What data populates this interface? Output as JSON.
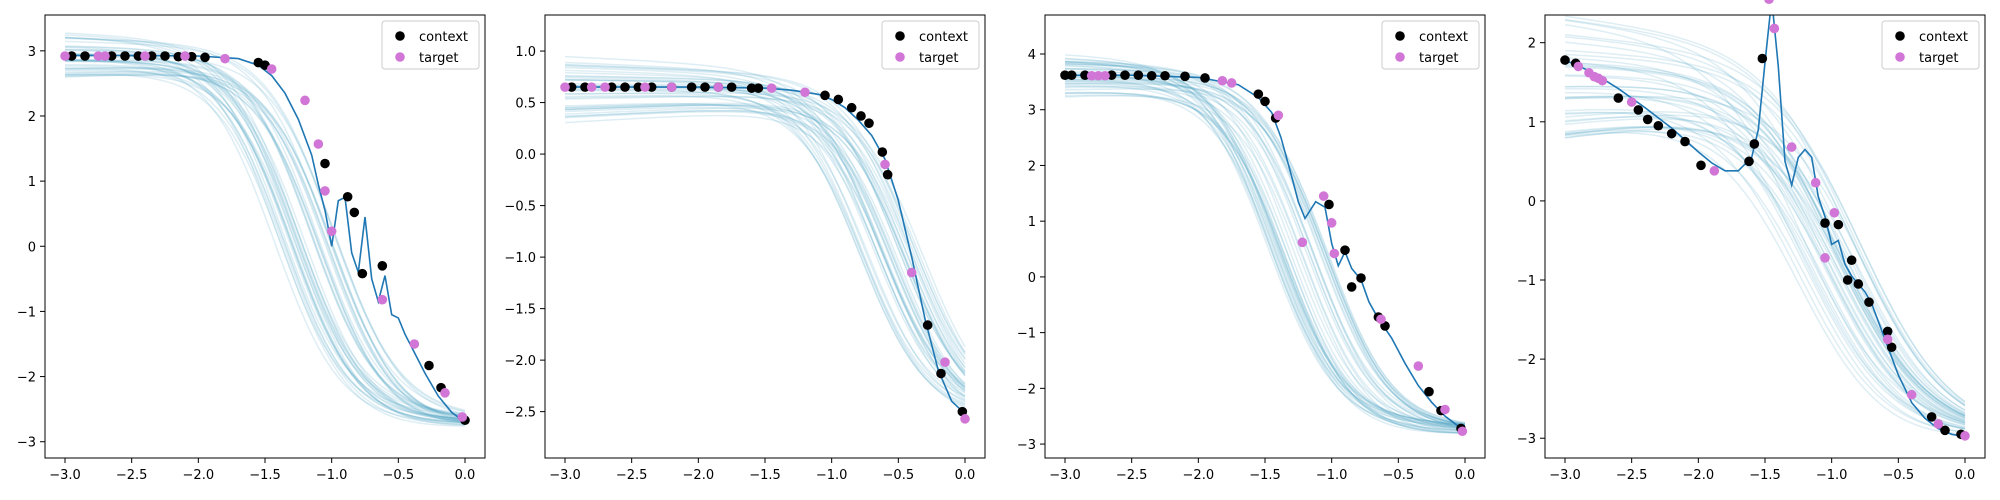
{
  "colors": {
    "context": "#000000",
    "target": "#d175d6",
    "mean_line": "#1f77b4",
    "samples": "#4aa3c0",
    "legend_border": "#cccccc"
  },
  "legend": {
    "context_label": "context",
    "target_label": "target",
    "placement": "upper right"
  },
  "chart_data": [
    {
      "type": "scatter",
      "title": "",
      "xlabel": "",
      "ylabel": "",
      "xlim": [
        -3.15,
        0.15
      ],
      "ylim": [
        -3.25,
        3.55
      ],
      "xticks": [
        -3.0,
        -2.5,
        -2.0,
        -1.5,
        -1.0,
        -0.5,
        0.0
      ],
      "xtick_labels": [
        "−3.0",
        "−2.5",
        "−2.0",
        "−1.5",
        "−1.0",
        "−0.5",
        "0.0"
      ],
      "yticks": [
        -3,
        -2,
        -1,
        0,
        1,
        2,
        3
      ],
      "ytick_labels": [
        "−3",
        "−2",
        "−1",
        "0",
        "1",
        "2",
        "3"
      ],
      "legend": "top-right",
      "mean_curve": {
        "x": [
          -3.0,
          -2.5,
          -2.0,
          -1.7,
          -1.55,
          -1.45,
          -1.35,
          -1.25,
          -1.15,
          -1.1,
          -1.05,
          -1.0,
          -0.95,
          -0.9,
          -0.85,
          -0.8,
          -0.75,
          -0.7,
          -0.65,
          -0.6,
          -0.55,
          -0.5,
          -0.45,
          -0.4,
          -0.3,
          -0.2,
          -0.1,
          0.0
        ],
        "y": [
          2.93,
          2.93,
          2.92,
          2.88,
          2.78,
          2.62,
          2.35,
          1.95,
          1.4,
          0.95,
          0.55,
          0.0,
          0.7,
          0.75,
          -0.1,
          -0.4,
          0.45,
          -0.5,
          -0.85,
          -0.45,
          -1.05,
          -1.1,
          -1.35,
          -1.55,
          -1.95,
          -2.3,
          -2.55,
          -2.7
        ]
      },
      "context": {
        "x": [
          -2.95,
          -2.85,
          -2.65,
          -2.55,
          -2.45,
          -2.35,
          -2.25,
          -2.15,
          -2.05,
          -1.95,
          -1.55,
          -1.5,
          -1.05,
          -0.88,
          -0.83,
          -0.77,
          -0.62,
          -0.27,
          -0.18,
          0.0
        ],
        "y": [
          2.92,
          2.92,
          2.92,
          2.92,
          2.92,
          2.92,
          2.92,
          2.91,
          2.91,
          2.9,
          2.82,
          2.78,
          1.27,
          0.76,
          0.52,
          -0.42,
          -0.3,
          -1.83,
          -2.17,
          -2.67
        ]
      },
      "target": {
        "x": [
          -3.0,
          -2.75,
          -2.7,
          -2.4,
          -2.1,
          -1.8,
          -1.45,
          -1.2,
          -1.1,
          -1.05,
          -1.0,
          -0.62,
          -0.38,
          -0.15,
          -0.02
        ],
        "y": [
          2.92,
          2.92,
          2.92,
          2.92,
          2.92,
          2.88,
          2.72,
          2.24,
          1.57,
          0.85,
          0.23,
          -0.82,
          -1.5,
          -2.25,
          -2.62
        ]
      },
      "samples": {
        "count": 40,
        "x_start": -3.0,
        "x_end": 0.0,
        "y_high": 2.93,
        "y_low": -2.7,
        "spread_left": 0.35,
        "spread_right": 0.1,
        "knee": -1.2,
        "steepness": 4.0
      }
    },
    {
      "type": "scatter",
      "title": "",
      "xlabel": "",
      "ylabel": "",
      "xlim": [
        -3.15,
        0.15
      ],
      "ylim": [
        -2.95,
        1.35
      ],
      "xticks": [
        -3.0,
        -2.5,
        -2.0,
        -1.5,
        -1.0,
        -0.5,
        0.0
      ],
      "xtick_labels": [
        "−3.0",
        "−2.5",
        "−2.0",
        "−1.5",
        "−1.0",
        "−0.5",
        "0.0"
      ],
      "yticks": [
        -2.5,
        -2.0,
        -1.5,
        -1.0,
        -0.5,
        0.0,
        0.5,
        1.0
      ],
      "ytick_labels": [
        "−2.5",
        "−2.0",
        "−1.5",
        "−1.0",
        "−0.5",
        "0.0",
        "0.5",
        "1.0"
      ],
      "legend": "top-right",
      "mean_curve": {
        "x": [
          -3.0,
          -2.5,
          -2.0,
          -1.5,
          -1.3,
          -1.1,
          -1.0,
          -0.9,
          -0.8,
          -0.7,
          -0.6,
          -0.5,
          -0.4,
          -0.3,
          -0.2,
          -0.1,
          0.0
        ],
        "y": [
          0.65,
          0.65,
          0.65,
          0.64,
          0.62,
          0.58,
          0.53,
          0.45,
          0.33,
          0.18,
          -0.05,
          -0.45,
          -1.0,
          -1.6,
          -2.1,
          -2.4,
          -2.52
        ]
      },
      "context": {
        "x": [
          -2.95,
          -2.85,
          -2.65,
          -2.55,
          -2.45,
          -2.35,
          -2.2,
          -2.05,
          -1.95,
          -1.85,
          -1.75,
          -1.6,
          -1.55,
          -1.05,
          -0.95,
          -0.85,
          -0.78,
          -0.72,
          -0.62,
          -0.58,
          -0.28,
          -0.18,
          -0.02
        ],
        "y": [
          0.65,
          0.65,
          0.65,
          0.65,
          0.65,
          0.65,
          0.65,
          0.65,
          0.65,
          0.65,
          0.65,
          0.64,
          0.64,
          0.57,
          0.53,
          0.45,
          0.37,
          0.3,
          0.02,
          -0.2,
          -1.66,
          -2.13,
          -2.5
        ]
      },
      "target": {
        "x": [
          -3.0,
          -2.8,
          -2.7,
          -2.4,
          -2.2,
          -1.85,
          -1.45,
          -1.2,
          -0.6,
          -0.4,
          -0.15,
          0.0
        ],
        "y": [
          0.65,
          0.65,
          0.65,
          0.65,
          0.65,
          0.65,
          0.64,
          0.6,
          -0.1,
          -1.15,
          -2.02,
          -2.57
        ]
      },
      "samples": {
        "count": 40,
        "x_start": -3.0,
        "x_end": 0.0,
        "y_high": 0.65,
        "y_low": -2.55,
        "spread_left": 0.35,
        "spread_right": 0.12,
        "knee": -0.55,
        "steepness": 4.0
      }
    },
    {
      "type": "scatter",
      "title": "",
      "xlabel": "",
      "ylabel": "",
      "xlim": [
        -3.15,
        0.15
      ],
      "ylim": [
        -3.25,
        4.7
      ],
      "xticks": [
        -3.0,
        -2.5,
        -2.0,
        -1.5,
        -1.0,
        -0.5,
        0.0
      ],
      "xtick_labels": [
        "−3.0",
        "−2.5",
        "−2.0",
        "−1.5",
        "−1.0",
        "−0.5",
        "0.0"
      ],
      "yticks": [
        -3,
        -2,
        -1,
        0,
        1,
        2,
        3,
        4
      ],
      "ytick_labels": [
        "−3",
        "−2",
        "−1",
        "0",
        "1",
        "2",
        "3",
        "4"
      ],
      "legend": "top-right",
      "mean_curve": {
        "x": [
          -3.0,
          -2.5,
          -2.0,
          -1.7,
          -1.55,
          -1.45,
          -1.38,
          -1.3,
          -1.25,
          -1.2,
          -1.12,
          -1.05,
          -1.0,
          -0.95,
          -0.9,
          -0.85,
          -0.78,
          -0.72,
          -0.65,
          -0.55,
          -0.45,
          -0.35,
          -0.25,
          -0.15,
          -0.05,
          0.0
        ],
        "y": [
          3.62,
          3.62,
          3.58,
          3.45,
          3.22,
          2.95,
          2.5,
          1.8,
          1.35,
          1.05,
          1.35,
          1.25,
          0.6,
          0.2,
          0.45,
          0.15,
          -0.05,
          -0.45,
          -0.75,
          -1.1,
          -1.55,
          -1.95,
          -2.25,
          -2.5,
          -2.68,
          -2.75
        ]
      },
      "context": {
        "x": [
          -3.0,
          -2.95,
          -2.85,
          -2.65,
          -2.55,
          -2.45,
          -2.35,
          -2.25,
          -2.1,
          -1.95,
          -1.55,
          -1.5,
          -1.42,
          -1.02,
          -0.9,
          -0.85,
          -0.78,
          -0.65,
          -0.6,
          -0.27,
          -0.18,
          -0.03
        ],
        "y": [
          3.62,
          3.62,
          3.62,
          3.62,
          3.62,
          3.62,
          3.61,
          3.61,
          3.6,
          3.57,
          3.28,
          3.15,
          2.85,
          1.3,
          0.48,
          -0.18,
          -0.02,
          -0.72,
          -0.88,
          -2.06,
          -2.4,
          -2.72
        ]
      },
      "target": {
        "x": [
          -2.8,
          -2.75,
          -2.7,
          -1.82,
          -1.75,
          -1.4,
          -1.22,
          -1.06,
          -1.0,
          -0.98,
          -0.63,
          -0.35,
          -0.15,
          -0.02
        ],
        "y": [
          3.61,
          3.61,
          3.61,
          3.52,
          3.48,
          2.9,
          0.62,
          1.45,
          0.97,
          0.42,
          -0.76,
          -1.6,
          -2.38,
          -2.77
        ]
      },
      "samples": {
        "count": 40,
        "x_start": -3.0,
        "x_end": 0.0,
        "y_high": 3.62,
        "y_low": -2.75,
        "spread_left": 0.4,
        "spread_right": 0.1,
        "knee": -1.25,
        "steepness": 4.0
      }
    },
    {
      "type": "scatter",
      "title": "",
      "xlabel": "",
      "ylabel": "",
      "xlim": [
        -3.15,
        0.15
      ],
      "ylim": [
        -3.25,
        2.35
      ],
      "xticks": [
        -3.0,
        -2.5,
        -2.0,
        -1.5,
        -1.0,
        -0.5,
        0.0
      ],
      "xtick_labels": [
        "−3.0",
        "−2.5",
        "−2.0",
        "−1.5",
        "−1.0",
        "−0.5",
        "0.0"
      ],
      "yticks": [
        -3,
        -2,
        -1,
        0,
        1,
        2
      ],
      "ytick_labels": [
        "−3",
        "−2",
        "−1",
        "0",
        "1",
        "2"
      ],
      "legend": "top-right",
      "mean_curve": {
        "x": [
          -3.0,
          -2.8,
          -2.6,
          -2.4,
          -2.2,
          -2.0,
          -1.9,
          -1.8,
          -1.7,
          -1.6,
          -1.55,
          -1.5,
          -1.45,
          -1.4,
          -1.35,
          -1.3,
          -1.25,
          -1.2,
          -1.15,
          -1.1,
          -1.05,
          -1.0,
          -0.95,
          -0.9,
          -0.85,
          -0.8,
          -0.75,
          -0.7,
          -0.6,
          -0.5,
          -0.4,
          -0.3,
          -0.2,
          -0.1,
          0.0
        ],
        "y": [
          1.78,
          1.63,
          1.42,
          1.18,
          0.92,
          0.62,
          0.48,
          0.38,
          0.38,
          0.55,
          0.9,
          1.75,
          2.55,
          1.7,
          0.5,
          0.2,
          0.55,
          0.65,
          0.55,
          0.05,
          -0.2,
          -0.55,
          -0.5,
          -0.8,
          -0.95,
          -1.05,
          -1.15,
          -1.3,
          -1.75,
          -2.2,
          -2.55,
          -2.75,
          -2.88,
          -2.95,
          -2.98
        ]
      },
      "context": {
        "x": [
          -3.0,
          -2.92,
          -2.6,
          -2.45,
          -2.38,
          -2.3,
          -2.2,
          -2.1,
          -1.98,
          -1.62,
          -1.58,
          -1.52,
          -1.05,
          -0.95,
          -0.88,
          -0.85,
          -0.8,
          -0.72,
          -0.58,
          -0.55,
          -0.25,
          -0.15,
          -0.03
        ],
        "y": [
          1.78,
          1.74,
          1.3,
          1.15,
          1.03,
          0.95,
          0.85,
          0.75,
          0.45,
          0.5,
          0.72,
          1.8,
          -0.28,
          -0.3,
          -1.0,
          -0.75,
          -1.05,
          -1.28,
          -1.65,
          -1.85,
          -2.73,
          -2.9,
          -2.95
        ]
      },
      "target": {
        "x": [
          -2.9,
          -2.82,
          -2.78,
          -2.75,
          -2.72,
          -2.5,
          -1.88,
          -1.47,
          -1.43,
          -1.3,
          -1.12,
          -1.05,
          -0.98,
          -0.58,
          -0.4,
          -0.2,
          0.0
        ],
        "y": [
          1.7,
          1.62,
          1.57,
          1.55,
          1.52,
          1.25,
          0.38,
          2.55,
          2.18,
          0.68,
          0.23,
          -0.72,
          -0.15,
          -1.75,
          -2.45,
          -2.82,
          -2.97
        ]
      },
      "samples": {
        "count": 40,
        "x_start": -3.0,
        "x_end": 0.0,
        "y_high": 1.6,
        "y_low": -2.98,
        "spread_left": 0.8,
        "spread_right": 0.08,
        "knee": -1.0,
        "steepness": 3.0
      }
    }
  ]
}
